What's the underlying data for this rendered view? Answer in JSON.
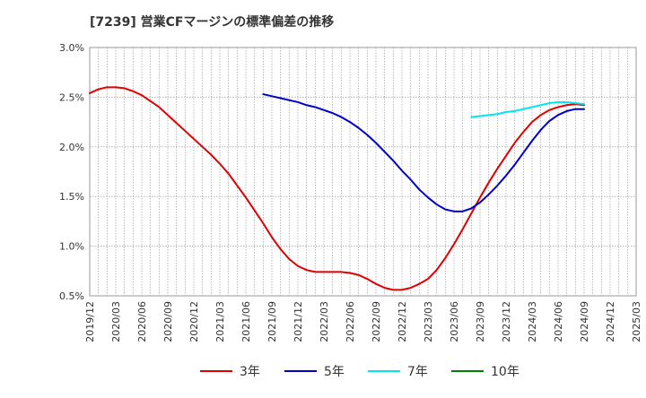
{
  "chart_data": {
    "type": "line",
    "title": "[7239]  営業CFマージンの標準偏差の推移",
    "xlabel": "",
    "ylabel": "",
    "x_ticks": [
      "2019/12",
      "2020/03",
      "2020/06",
      "2020/09",
      "2020/12",
      "2021/03",
      "2021/06",
      "2021/09",
      "2021/12",
      "2022/03",
      "2022/06",
      "2022/09",
      "2022/12",
      "2023/03",
      "2023/06",
      "2023/09",
      "2023/12",
      "2024/03",
      "2024/06",
      "2024/09",
      "2024/12",
      "2025/03"
    ],
    "y_ticks": [
      "0.5%",
      "1.0%",
      "1.5%",
      "2.0%",
      "2.5%",
      "3.0%"
    ],
    "ylim": [
      0.5,
      3.0
    ],
    "grid": "dotted",
    "legend_position": "bottom",
    "series": [
      {
        "name": "3年",
        "color": "#e00000",
        "x": [
          "2019/12",
          "2020/01",
          "2020/02",
          "2020/03",
          "2020/04",
          "2020/05",
          "2020/06",
          "2020/07",
          "2020/08",
          "2020/09",
          "2020/10",
          "2020/11",
          "2020/12",
          "2021/01",
          "2021/02",
          "2021/03",
          "2021/04",
          "2021/05",
          "2021/06",
          "2021/07",
          "2021/08",
          "2021/09",
          "2021/10",
          "2021/11",
          "2021/12",
          "2022/01",
          "2022/02",
          "2022/03",
          "2022/04",
          "2022/05",
          "2022/06",
          "2022/07",
          "2022/08",
          "2022/09",
          "2022/10",
          "2022/11",
          "2022/12",
          "2023/01",
          "2023/02",
          "2023/03",
          "2023/04",
          "2023/05",
          "2023/06",
          "2023/07",
          "2023/08",
          "2023/09",
          "2023/10",
          "2023/11",
          "2023/12",
          "2024/01",
          "2024/02",
          "2024/03",
          "2024/04",
          "2024/05",
          "2024/06",
          "2024/07",
          "2024/08",
          "2024/09"
        ],
        "values": [
          2.54,
          2.58,
          2.6,
          2.6,
          2.59,
          2.56,
          2.52,
          2.46,
          2.4,
          2.32,
          2.24,
          2.16,
          2.08,
          2.0,
          1.92,
          1.83,
          1.73,
          1.61,
          1.49,
          1.36,
          1.23,
          1.09,
          0.97,
          0.87,
          0.8,
          0.76,
          0.74,
          0.74,
          0.74,
          0.74,
          0.73,
          0.71,
          0.67,
          0.62,
          0.58,
          0.56,
          0.56,
          0.58,
          0.62,
          0.67,
          0.76,
          0.88,
          1.02,
          1.17,
          1.33,
          1.49,
          1.64,
          1.78,
          1.91,
          2.04,
          2.15,
          2.25,
          2.32,
          2.37,
          2.4,
          2.42,
          2.43,
          2.42
        ]
      },
      {
        "name": "5年",
        "color": "#0000cc",
        "x": [
          "2021/08",
          "2021/09",
          "2021/10",
          "2021/11",
          "2021/12",
          "2022/01",
          "2022/02",
          "2022/03",
          "2022/04",
          "2022/05",
          "2022/06",
          "2022/07",
          "2022/08",
          "2022/09",
          "2022/10",
          "2022/11",
          "2022/12",
          "2023/01",
          "2023/02",
          "2023/03",
          "2023/04",
          "2023/05",
          "2023/06",
          "2023/07",
          "2023/08",
          "2023/09",
          "2023/10",
          "2023/11",
          "2023/12",
          "2024/01",
          "2024/02",
          "2024/03",
          "2024/04",
          "2024/05",
          "2024/06",
          "2024/07",
          "2024/08",
          "2024/09"
        ],
        "values": [
          2.53,
          2.51,
          2.49,
          2.47,
          2.45,
          2.42,
          2.4,
          2.37,
          2.34,
          2.3,
          2.25,
          2.19,
          2.12,
          2.04,
          1.95,
          1.86,
          1.76,
          1.67,
          1.57,
          1.49,
          1.42,
          1.37,
          1.35,
          1.35,
          1.38,
          1.44,
          1.52,
          1.61,
          1.71,
          1.82,
          1.94,
          2.06,
          2.17,
          2.26,
          2.32,
          2.36,
          2.38,
          2.38
        ]
      },
      {
        "name": "7年",
        "color": "#00e5ee",
        "x": [
          "2023/08",
          "2023/09",
          "2023/10",
          "2023/11",
          "2023/12",
          "2024/01",
          "2024/02",
          "2024/03",
          "2024/04",
          "2024/05",
          "2024/06",
          "2024/07",
          "2024/08",
          "2024/09"
        ],
        "values": [
          2.3,
          2.31,
          2.32,
          2.33,
          2.35,
          2.36,
          2.38,
          2.4,
          2.42,
          2.44,
          2.45,
          2.45,
          2.44,
          2.43
        ]
      },
      {
        "name": "10年",
        "color": "#008000",
        "x": [],
        "values": []
      }
    ]
  }
}
